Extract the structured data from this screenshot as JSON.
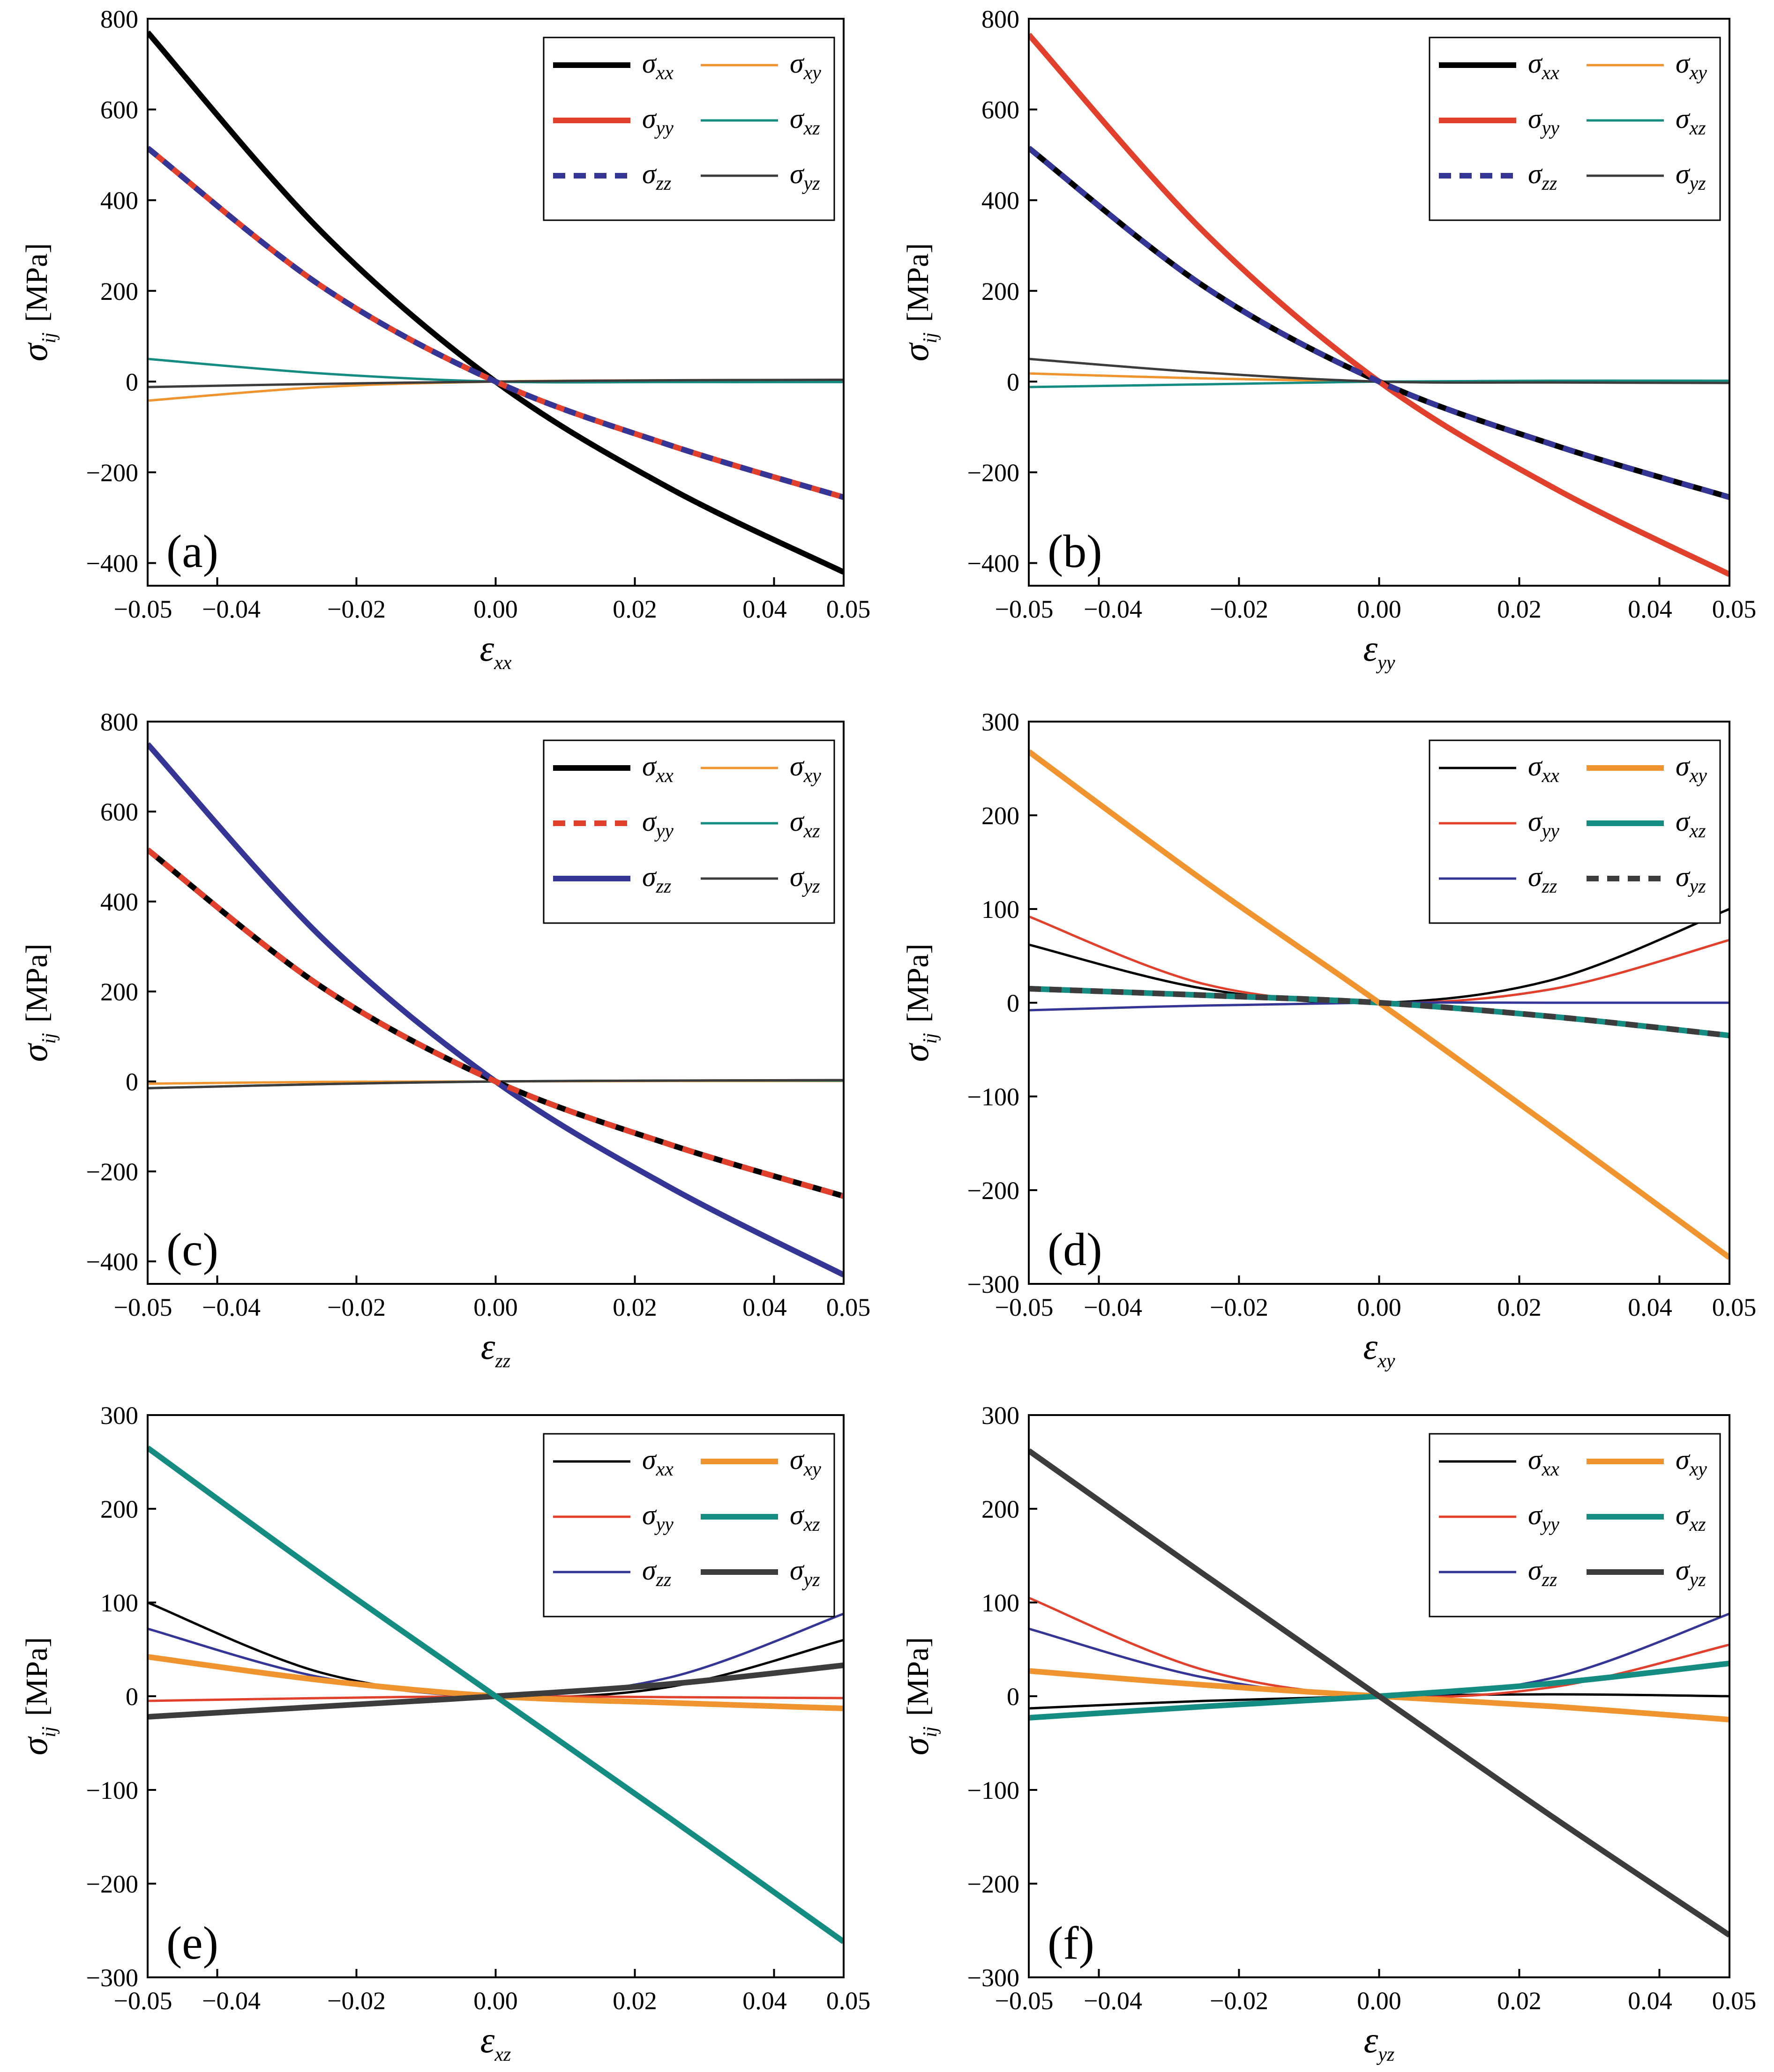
{
  "figure": {
    "background": "#ffffff"
  },
  "series_styles": {
    "s_xx": {
      "symbol": "σ",
      "sub": "xx",
      "color": "#000000"
    },
    "s_yy": {
      "symbol": "σ",
      "sub": "yy",
      "color": "#e0402c"
    },
    "s_zz": {
      "symbol": "σ",
      "sub": "zz",
      "color": "#353595"
    },
    "s_xy": {
      "symbol": "σ",
      "sub": "xy",
      "color": "#f0942f"
    },
    "s_xz": {
      "symbol": "σ",
      "sub": "xz",
      "color": "#148c82"
    },
    "s_yz": {
      "symbol": "σ",
      "sub": "yz",
      "color": "#3c3c3c"
    }
  },
  "chart_data": [
    {
      "type": "line",
      "panel_label": "(a)",
      "xlabel": {
        "symbol": "ε",
        "sub": "xx"
      },
      "ylabel": {
        "symbol": "σ",
        "sub": "ij",
        "unit": "[MPa]"
      },
      "xlim": [
        -0.05,
        0.05
      ],
      "ylim": [
        -450,
        800
      ],
      "xticks": [
        -0.05,
        -0.04,
        -0.02,
        0.0,
        0.02,
        0.04,
        0.05
      ],
      "xtick_labels": [
        "−0.05",
        "−0.04",
        "−0.02",
        "0.00",
        "0.02",
        "0.04",
        "0.05"
      ],
      "yticks": [
        -400,
        -200,
        0,
        200,
        400,
        600,
        800
      ],
      "ytick_labels": [
        "−400",
        "−200",
        "0",
        "200",
        "400",
        "600",
        "800"
      ],
      "legend_location": "top-right",
      "x": [
        -0.05,
        -0.025,
        0.0,
        0.025,
        0.05
      ],
      "series": [
        {
          "key": "s_xx",
          "values": [
            770,
            330,
            0,
            -235,
            -420
          ],
          "weight": "thick",
          "dash": false,
          "legend": true
        },
        {
          "key": "s_yy",
          "values": [
            515,
            210,
            0,
            -140,
            -255
          ],
          "weight": "thick",
          "dash": false,
          "legend": true
        },
        {
          "key": "s_zz",
          "values": [
            515,
            210,
            0,
            -140,
            -255
          ],
          "weight": "thick",
          "dash": true,
          "legend": true
        },
        {
          "key": "s_xy",
          "values": [
            -42,
            -12,
            0,
            3,
            3
          ],
          "weight": "thin",
          "dash": false,
          "legend": true
        },
        {
          "key": "s_xz",
          "values": [
            50,
            18,
            0,
            -1,
            -1
          ],
          "weight": "thin",
          "dash": false,
          "legend": true
        },
        {
          "key": "s_yz",
          "values": [
            -12,
            -5,
            0,
            3,
            4
          ],
          "weight": "thin",
          "dash": false,
          "legend": true
        }
      ],
      "legend_order": [
        "s_xx",
        "s_xy",
        "s_yy",
        "s_xz",
        "s_zz",
        "s_yz"
      ]
    },
    {
      "type": "line",
      "panel_label": "(b)",
      "xlabel": {
        "symbol": "ε",
        "sub": "yy"
      },
      "ylabel": {
        "symbol": "σ",
        "sub": "ij",
        "unit": "[MPa]"
      },
      "xlim": [
        -0.05,
        0.05
      ],
      "ylim": [
        -450,
        800
      ],
      "xticks": [
        -0.05,
        -0.04,
        -0.02,
        0.0,
        0.02,
        0.04,
        0.05
      ],
      "xtick_labels": [
        "−0.05",
        "−0.04",
        "−0.02",
        "0.00",
        "0.02",
        "0.04",
        "0.05"
      ],
      "yticks": [
        -400,
        -200,
        0,
        200,
        400,
        600,
        800
      ],
      "ytick_labels": [
        "−400",
        "−200",
        "0",
        "200",
        "400",
        "600",
        "800"
      ],
      "legend_location": "top-right",
      "x": [
        -0.05,
        -0.025,
        0.0,
        0.025,
        0.05
      ],
      "series": [
        {
          "key": "s_xx",
          "values": [
            515,
            210,
            0,
            -140,
            -255
          ],
          "weight": "thick",
          "dash": false,
          "legend": true
        },
        {
          "key": "s_yy",
          "values": [
            765,
            330,
            0,
            -235,
            -425
          ],
          "weight": "thick",
          "dash": false,
          "legend": true
        },
        {
          "key": "s_zz",
          "values": [
            515,
            210,
            0,
            -140,
            -255
          ],
          "weight": "thick",
          "dash": true,
          "legend": true
        },
        {
          "key": "s_xy",
          "values": [
            18,
            7,
            0,
            -2,
            -2
          ],
          "weight": "thin",
          "dash": false,
          "legend": true
        },
        {
          "key": "s_xz",
          "values": [
            -12,
            -6,
            0,
            2,
            2
          ],
          "weight": "thin",
          "dash": false,
          "legend": true
        },
        {
          "key": "s_yz",
          "values": [
            50,
            20,
            0,
            -2,
            -3
          ],
          "weight": "thin",
          "dash": false,
          "legend": true
        }
      ],
      "legend_order": [
        "s_xx",
        "s_xy",
        "s_yy",
        "s_xz",
        "s_zz",
        "s_yz"
      ]
    },
    {
      "type": "line",
      "panel_label": "(c)",
      "xlabel": {
        "symbol": "ε",
        "sub": "zz"
      },
      "ylabel": {
        "symbol": "σ",
        "sub": "ij",
        "unit": "[MPa]"
      },
      "xlim": [
        -0.05,
        0.05
      ],
      "ylim": [
        -450,
        800
      ],
      "xticks": [
        -0.05,
        -0.04,
        -0.02,
        0.0,
        0.02,
        0.04,
        0.05
      ],
      "xtick_labels": [
        "−0.05",
        "−0.04",
        "−0.02",
        "0.00",
        "0.02",
        "0.04",
        "0.05"
      ],
      "yticks": [
        -400,
        -200,
        0,
        200,
        400,
        600,
        800
      ],
      "ytick_labels": [
        "−400",
        "−200",
        "0",
        "200",
        "400",
        "600",
        "800"
      ],
      "legend_location": "top-right",
      "x": [
        -0.05,
        -0.025,
        0.0,
        0.025,
        0.05
      ],
      "series": [
        {
          "key": "s_xx",
          "values": [
            515,
            210,
            0,
            -140,
            -255
          ],
          "weight": "thick",
          "dash": false,
          "legend": true
        },
        {
          "key": "s_yy",
          "values": [
            515,
            210,
            0,
            -140,
            -255
          ],
          "weight": "thick",
          "dash": true,
          "legend": true
        },
        {
          "key": "s_zz",
          "values": [
            750,
            320,
            0,
            -235,
            -430
          ],
          "weight": "thick",
          "dash": false,
          "legend": true
        },
        {
          "key": "s_xy",
          "values": [
            -5,
            -1,
            0,
            1,
            1
          ],
          "weight": "thin",
          "dash": false,
          "legend": true
        },
        {
          "key": "s_xz",
          "values": [
            -15,
            -6,
            0,
            2,
            2
          ],
          "weight": "thin",
          "dash": false,
          "legend": true
        },
        {
          "key": "s_yz",
          "values": [
            -15,
            -6,
            0,
            2,
            3
          ],
          "weight": "thin",
          "dash": false,
          "legend": true
        }
      ],
      "legend_order": [
        "s_xx",
        "s_xy",
        "s_yy",
        "s_xz",
        "s_zz",
        "s_yz"
      ]
    },
    {
      "type": "line",
      "panel_label": "(d)",
      "xlabel": {
        "symbol": "ε",
        "sub": "xy"
      },
      "ylabel": {
        "symbol": "σ",
        "sub": "ij",
        "unit": "[MPa]"
      },
      "xlim": [
        -0.05,
        0.05
      ],
      "ylim": [
        -300,
        300
      ],
      "xticks": [
        -0.05,
        -0.04,
        -0.02,
        0.0,
        0.02,
        0.04,
        0.05
      ],
      "xtick_labels": [
        "−0.05",
        "−0.04",
        "−0.02",
        "0.00",
        "0.02",
        "0.04",
        "0.05"
      ],
      "yticks": [
        -300,
        -200,
        -100,
        0,
        100,
        200,
        300
      ],
      "ytick_labels": [
        "−300",
        "−200",
        "−100",
        "0",
        "100",
        "200",
        "300"
      ],
      "legend_location": "top-right",
      "x": [
        -0.05,
        -0.025,
        0.0,
        0.025,
        0.05
      ],
      "series": [
        {
          "key": "s_xx",
          "values": [
            62,
            15,
            0,
            25,
            100
          ],
          "weight": "thin",
          "dash": false,
          "legend": true
        },
        {
          "key": "s_yy",
          "values": [
            92,
            20,
            0,
            15,
            67
          ],
          "weight": "thin",
          "dash": false,
          "legend": true
        },
        {
          "key": "s_zz",
          "values": [
            -8,
            -3,
            0,
            0,
            0
          ],
          "weight": "thin",
          "dash": false,
          "legend": true
        },
        {
          "key": "s_xz",
          "values": [
            15,
            8,
            0,
            -15,
            -35
          ],
          "weight": "thick",
          "dash": false,
          "legend": true
        },
        {
          "key": "s_yz",
          "values": [
            15,
            8,
            0,
            -15,
            -35
          ],
          "weight": "thick",
          "dash": true,
          "legend": true
        },
        {
          "key": "s_xy",
          "values": [
            268,
            130,
            0,
            -135,
            -272
          ],
          "weight": "thick",
          "dash": false,
          "legend": true
        }
      ],
      "legend_order": [
        "s_xx",
        "s_xy",
        "s_yy",
        "s_xz",
        "s_zz",
        "s_yz"
      ]
    },
    {
      "type": "line",
      "panel_label": "(e)",
      "xlabel": {
        "symbol": "ε",
        "sub": "xz"
      },
      "ylabel": {
        "symbol": "σ",
        "sub": "ij",
        "unit": "[MPa]"
      },
      "xlim": [
        -0.05,
        0.05
      ],
      "ylim": [
        -300,
        300
      ],
      "xticks": [
        -0.05,
        -0.04,
        -0.02,
        0.0,
        0.02,
        0.04,
        0.05
      ],
      "xtick_labels": [
        "−0.05",
        "−0.04",
        "−0.02",
        "0.00",
        "0.02",
        "0.04",
        "0.05"
      ],
      "yticks": [
        -300,
        -200,
        -100,
        0,
        100,
        200,
        300
      ],
      "ytick_labels": [
        "−300",
        "−200",
        "−100",
        "0",
        "100",
        "200",
        "300"
      ],
      "legend_location": "top-right",
      "x": [
        -0.05,
        -0.025,
        0.0,
        0.025,
        0.05
      ],
      "series": [
        {
          "key": "s_xx",
          "values": [
            100,
            25,
            0,
            10,
            60
          ],
          "weight": "thin",
          "dash": false,
          "legend": true
        },
        {
          "key": "s_yy",
          "values": [
            -5,
            -2,
            0,
            -1,
            -2
          ],
          "weight": "thin",
          "dash": false,
          "legend": true
        },
        {
          "key": "s_zz",
          "values": [
            72,
            20,
            0,
            20,
            88
          ],
          "weight": "thin",
          "dash": false,
          "legend": true
        },
        {
          "key": "s_xy",
          "values": [
            42,
            17,
            0,
            -7,
            -13
          ],
          "weight": "thick",
          "dash": false,
          "legend": true
        },
        {
          "key": "s_yz",
          "values": [
            -22,
            -11,
            0,
            13,
            33
          ],
          "weight": "thick",
          "dash": false,
          "legend": true
        },
        {
          "key": "s_xz",
          "values": [
            265,
            130,
            0,
            -130,
            -262
          ],
          "weight": "thick",
          "dash": false,
          "legend": true
        }
      ],
      "legend_order": [
        "s_xx",
        "s_xy",
        "s_yy",
        "s_xz",
        "s_zz",
        "s_yz"
      ]
    },
    {
      "type": "line",
      "panel_label": "(f)",
      "xlabel": {
        "symbol": "ε",
        "sub": "yz"
      },
      "ylabel": {
        "symbol": "σ",
        "sub": "ij",
        "unit": "[MPa]"
      },
      "xlim": [
        -0.05,
        0.05
      ],
      "ylim": [
        -300,
        300
      ],
      "xticks": [
        -0.05,
        -0.04,
        -0.02,
        0.0,
        0.02,
        0.04,
        0.05
      ],
      "xtick_labels": [
        "−0.05",
        "−0.04",
        "−0.02",
        "0.00",
        "0.02",
        "0.04",
        "0.05"
      ],
      "yticks": [
        -300,
        -200,
        -100,
        0,
        100,
        200,
        300
      ],
      "ytick_labels": [
        "−300",
        "−200",
        "−100",
        "0",
        "100",
        "200",
        "300"
      ],
      "legend_location": "top-right",
      "x": [
        -0.05,
        -0.025,
        0.0,
        0.025,
        0.05
      ],
      "series": [
        {
          "key": "s_xx",
          "values": [
            -13,
            -5,
            0,
            2,
            0
          ],
          "weight": "thin",
          "dash": false,
          "legend": true
        },
        {
          "key": "s_yy",
          "values": [
            105,
            28,
            0,
            10,
            55
          ],
          "weight": "thin",
          "dash": false,
          "legend": true
        },
        {
          "key": "s_zz",
          "values": [
            72,
            20,
            0,
            20,
            88
          ],
          "weight": "thin",
          "dash": false,
          "legend": true
        },
        {
          "key": "s_xy",
          "values": [
            27,
            12,
            0,
            -11,
            -25
          ],
          "weight": "thick",
          "dash": false,
          "legend": true
        },
        {
          "key": "s_xz",
          "values": [
            -23,
            -11,
            0,
            14,
            35
          ],
          "weight": "thick",
          "dash": false,
          "legend": true
        },
        {
          "key": "s_yz",
          "values": [
            262,
            130,
            0,
            -130,
            -255
          ],
          "weight": "thick",
          "dash": false,
          "legend": true
        }
      ],
      "legend_order": [
        "s_xx",
        "s_xy",
        "s_yy",
        "s_xz",
        "s_zz",
        "s_yz"
      ]
    }
  ]
}
